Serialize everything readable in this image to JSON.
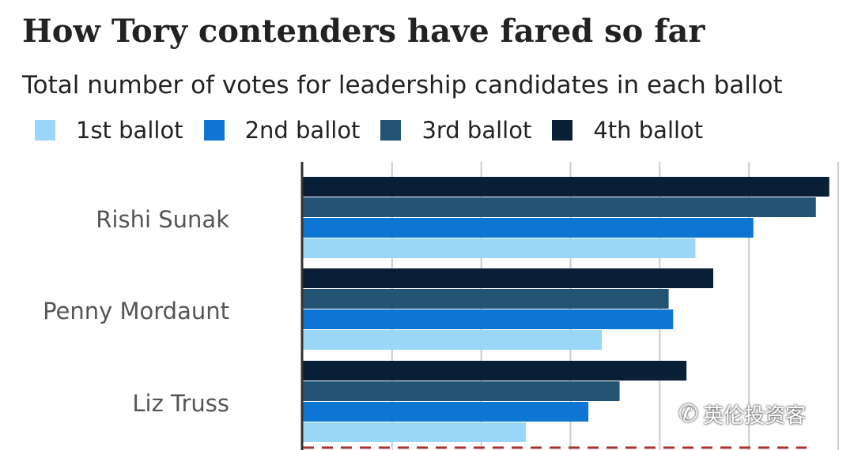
{
  "chart_data": {
    "type": "bar",
    "orientation": "horizontal",
    "title": "How Tory contenders have fared so far",
    "subtitle": "Total number of votes for leadership candidates in each ballot",
    "categories": [
      "Rishi Sunak",
      "Penny Mordaunt",
      "Liz Truss"
    ],
    "series": [
      {
        "name": "1st ballot",
        "color": "#9ad6f7",
        "values": [
          88,
          67,
          50
        ]
      },
      {
        "name": "2nd ballot",
        "color": "#0d75d2",
        "values": [
          101,
          83,
          64
        ]
      },
      {
        "name": "3rd ballot",
        "color": "#245473",
        "values": [
          115,
          82,
          71
        ]
      },
      {
        "name": "4th ballot",
        "color": "#081f36",
        "values": [
          118,
          92,
          86
        ]
      }
    ],
    "xlim": [
      0,
      120
    ],
    "grid": true,
    "gridlines": [
      0,
      20,
      40,
      60,
      80,
      100,
      120
    ],
    "threshold_line": {
      "value": "",
      "style": "dashed",
      "color": "#a8312f"
    },
    "legend_position": "top-left"
  },
  "watermark": {
    "text": "英伦投资客",
    "icon": "wechat-icon"
  }
}
